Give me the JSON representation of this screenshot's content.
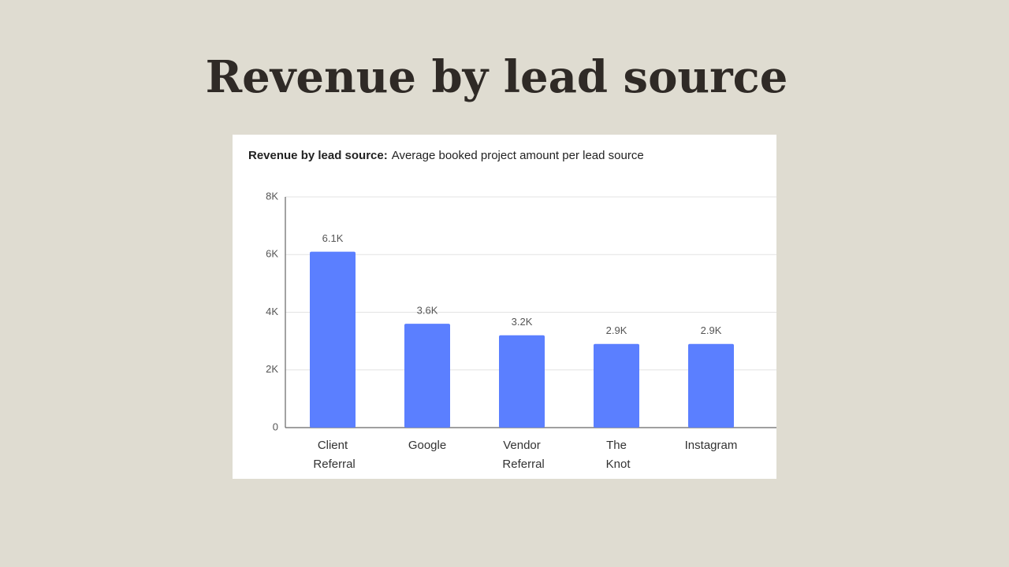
{
  "page_title": "Revenue by lead source",
  "chart_data": {
    "type": "bar",
    "title": "Revenue by lead source:",
    "subtitle": "Average booked project amount per lead source",
    "categories": [
      "Client Referral",
      "Google",
      "Vendor Referral",
      "The Knot",
      "Instagram"
    ],
    "values": [
      6100,
      3600,
      3200,
      2900,
      2900
    ],
    "value_labels": [
      "6.1K",
      "3.6K",
      "3.2K",
      "2.9K",
      "2.9K"
    ],
    "color": "#5b7fff",
    "ylim": [
      0,
      8000
    ],
    "yticks": [
      0,
      {
        "value": 2000,
        "label": "2K"
      },
      {
        "value": 4000,
        "label": "4K"
      },
      {
        "value": 6000,
        "label": "6K"
      },
      {
        "value": 8000,
        "label": "8K"
      }
    ],
    "grid": true
  }
}
